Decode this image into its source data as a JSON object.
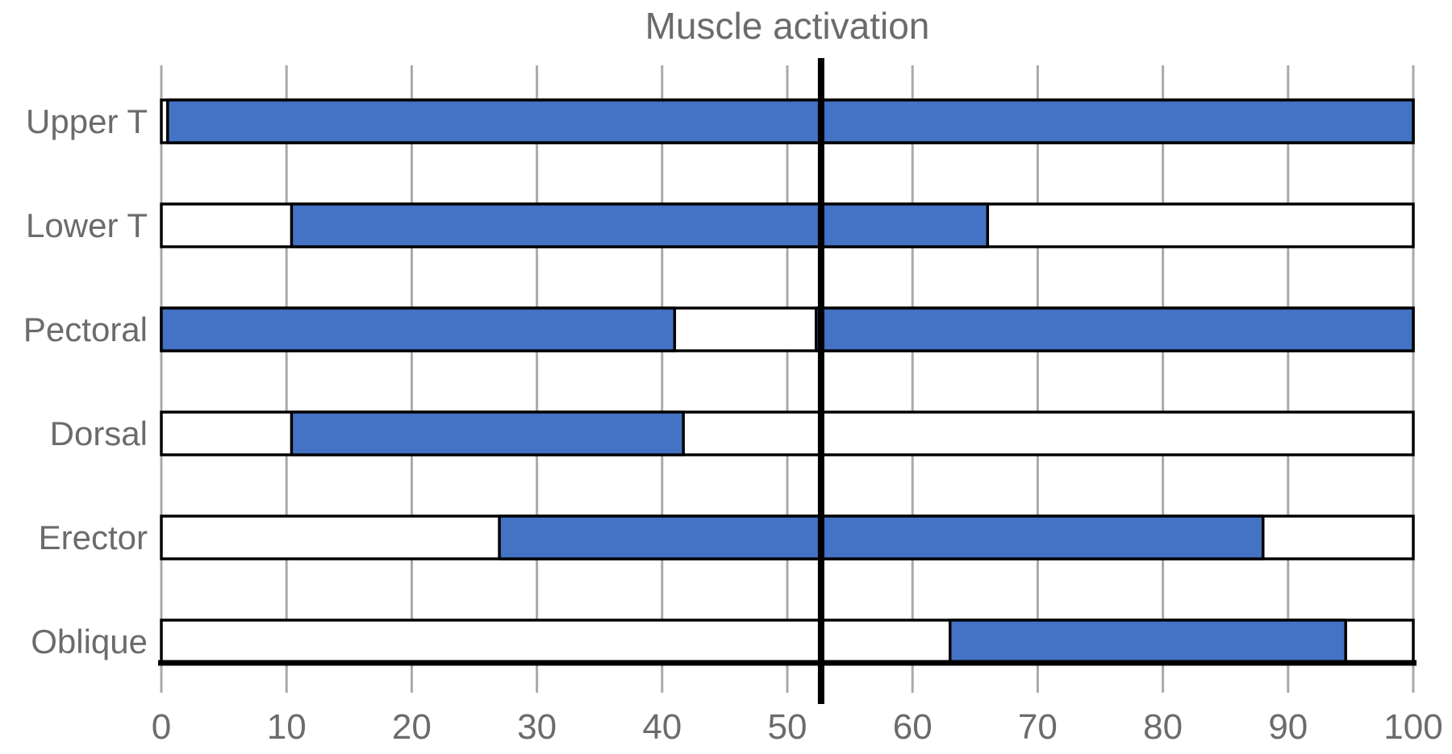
{
  "chart_data": {
    "type": "bar",
    "orientation": "horizontal",
    "title": "Muscle activation",
    "categories": [
      "Upper T",
      "Lower T",
      "Pectoral",
      "Dorsal",
      "Erector",
      "Oblique"
    ],
    "series": [
      {
        "name": "Upper T",
        "segments": [
          [
            0.5,
            100
          ]
        ]
      },
      {
        "name": "Lower T",
        "segments": [
          [
            10.4,
            66
          ]
        ]
      },
      {
        "name": "Pectoral",
        "segments": [
          [
            0,
            41
          ],
          [
            52.3,
            100
          ]
        ]
      },
      {
        "name": "Dorsal",
        "segments": [
          [
            10.4,
            41.7
          ]
        ]
      },
      {
        "name": "Erector",
        "segments": [
          [
            27,
            88
          ]
        ]
      },
      {
        "name": "Oblique",
        "segments": [
          [
            63,
            94.6
          ]
        ]
      }
    ],
    "range_bar": [
      0,
      100
    ],
    "reference_line_x": 52.7,
    "x_ticks": [
      0,
      10,
      20,
      30,
      40,
      50,
      60,
      70,
      80,
      90,
      100
    ],
    "xlim": [
      0,
      100
    ],
    "grid": true,
    "legend": "none",
    "colors": {
      "bar_fill": "#4472C4",
      "bar_border": "#000000",
      "range_fill": "#ffffff",
      "grid": "#a9a9a9",
      "text": "#6b6b6b",
      "reference_line": "#000000",
      "axis": "#000000",
      "background": "#ffffff"
    }
  }
}
